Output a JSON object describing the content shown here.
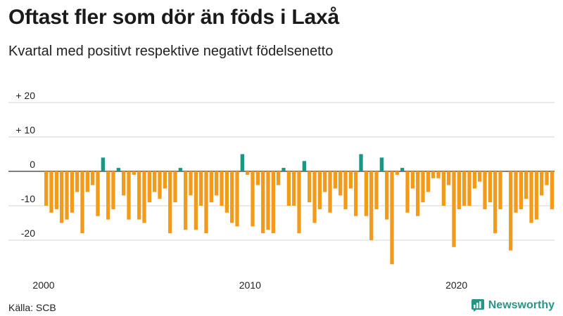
{
  "header": {
    "title": "Oftast fler som dör än föds i Laxå",
    "subtitle": "Kvartal med positivt respektive negativt födelsenetto"
  },
  "footer": {
    "source": "Källa: SCB",
    "brand": "Newsworthy"
  },
  "colors": {
    "positive": "#1b9584",
    "negative": "#f29a1a",
    "grid": "#d6d6d6",
    "zero_line": "#333333",
    "brand": "#2a9486"
  },
  "chart_data": {
    "type": "bar",
    "title": "Oftast fler som dör än föds i Laxå",
    "subtitle": "Kvartal med positivt respektive negativt födelsenetto",
    "xlabel": "",
    "ylabel": "",
    "ylim": [
      -28,
      22
    ],
    "y_ticks": [
      {
        "value": 20,
        "label": "+ 20"
      },
      {
        "value": 10,
        "label": "+ 10"
      },
      {
        "value": 0,
        "label": "0"
      },
      {
        "value": -10,
        "label": "-10"
      },
      {
        "value": -20,
        "label": "-20"
      }
    ],
    "x_ticks": [
      {
        "label": "2000",
        "index": 0
      },
      {
        "label": "2010",
        "index": 40
      },
      {
        "label": "2020",
        "index": 80
      }
    ],
    "grid": true,
    "start_period": "2000 Q1",
    "frequency": "quarter",
    "values": [
      -10,
      -12,
      -11,
      -15,
      -14,
      -12,
      -6,
      -18,
      -6,
      -4,
      -13,
      4,
      -14,
      -11,
      1,
      -7,
      -14,
      -1,
      -14,
      -15,
      -9,
      -6,
      -8,
      -5,
      -18,
      -9,
      1,
      -17,
      -7,
      -17,
      -10,
      -18,
      -9,
      -7,
      -10,
      -12,
      -15,
      -16,
      5,
      -1,
      -16,
      -4,
      -18,
      -17,
      -18,
      -4,
      1,
      -10,
      -10,
      -18,
      3,
      -9,
      -15,
      -11,
      -6,
      -12,
      -5,
      -7,
      -11,
      -5,
      -13,
      5,
      -13,
      -20,
      -11,
      4,
      -14,
      -27,
      -1,
      1,
      -12,
      -5,
      -13,
      -9,
      -6,
      -2,
      -2,
      -10,
      -4,
      -22,
      -11,
      -10,
      -10,
      -5,
      -3,
      -11,
      -9,
      -18,
      -11,
      0,
      -23,
      -12,
      -11,
      -8,
      -15,
      -14,
      -7,
      -4,
      -11
    ]
  }
}
